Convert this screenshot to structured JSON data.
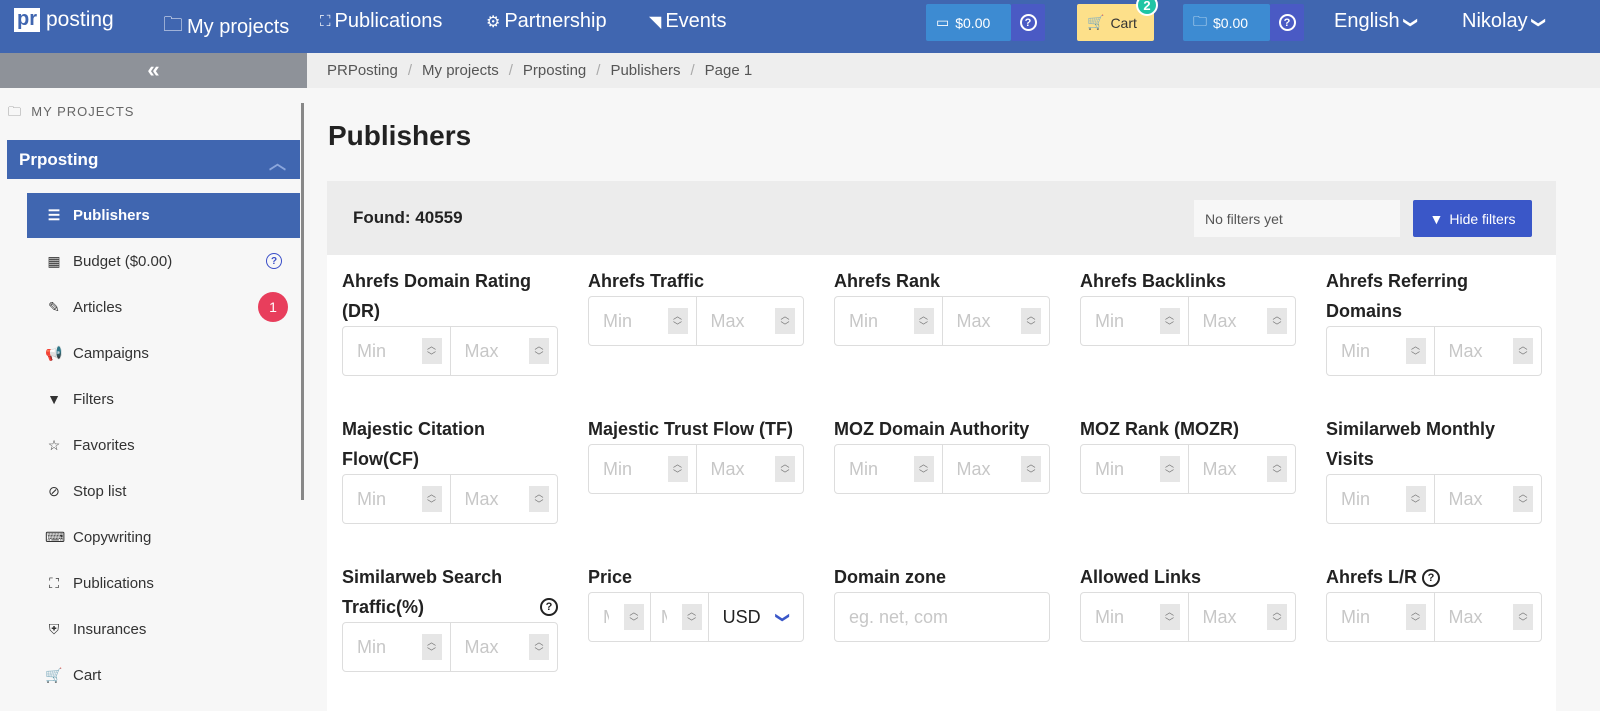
{
  "header": {
    "logo_pr": "pr",
    "logo_text": "posting",
    "nav": [
      {
        "label": "My projects",
        "icon": "folder-icon"
      },
      {
        "label": "Publications",
        "icon": "sitemap-icon"
      },
      {
        "label": "Partnership",
        "icon": "handshake-icon"
      },
      {
        "label": "Events",
        "icon": "rss-icon"
      }
    ],
    "balance1": "$0.00",
    "cart_label": "Cart",
    "cart_count": "2",
    "balance2": "$0.00",
    "language": "English",
    "user": "Nikolay"
  },
  "sidebar": {
    "section": "MY PROJECTS",
    "project": "Prposting",
    "items": [
      {
        "label": "Publishers",
        "icon": "list-icon"
      },
      {
        "label": "Budget ($0.00)",
        "icon": "calculator-icon"
      },
      {
        "label": "Articles",
        "icon": "pencil-icon",
        "badge": "1"
      },
      {
        "label": "Campaigns",
        "icon": "megaphone-icon"
      },
      {
        "label": "Filters",
        "icon": "filter-icon"
      },
      {
        "label": "Favorites",
        "icon": "star-icon"
      },
      {
        "label": "Stop list",
        "icon": "ban-icon"
      },
      {
        "label": "Copywriting",
        "icon": "keyboard-icon"
      },
      {
        "label": "Publications",
        "icon": "sitemap-icon"
      },
      {
        "label": "Insurances",
        "icon": "shield-icon"
      },
      {
        "label": "Cart",
        "icon": "cart-icon"
      }
    ]
  },
  "breadcrumb": [
    "PRPosting",
    "My projects",
    "Prposting",
    "Publishers",
    "Page 1"
  ],
  "page_title": "Publishers",
  "panel": {
    "found": "Found: 40559",
    "filters_placeholder": "No filters yet",
    "hide_filters": "Hide filters"
  },
  "filters": [
    {
      "label": "Ahrefs Domain Rating (DR)",
      "type": "range"
    },
    {
      "label": "Ahrefs Traffic",
      "type": "range"
    },
    {
      "label": "Ahrefs Rank",
      "type": "range"
    },
    {
      "label": "Ahrefs Backlinks",
      "type": "range"
    },
    {
      "label": "Ahrefs Referring Domains",
      "type": "range"
    },
    {
      "label": "Majestic Citation Flow(CF)",
      "type": "range"
    },
    {
      "label": "Majestic Trust Flow (TF)",
      "type": "range"
    },
    {
      "label": "MOZ Domain Authority",
      "type": "range"
    },
    {
      "label": "MOZ Rank (MOZR)",
      "type": "range"
    },
    {
      "label": "Similarweb Monthly Visits",
      "type": "range"
    },
    {
      "label": "Similarweb Search Traffic(%)",
      "type": "range",
      "help": true
    },
    {
      "label": "Price",
      "type": "price",
      "currency": "USD"
    },
    {
      "label": "Domain zone",
      "type": "text",
      "placeholder": "eg. net, com"
    },
    {
      "label": "Allowed Links",
      "type": "range"
    },
    {
      "label": "Ahrefs L/R",
      "type": "range",
      "help": true
    }
  ],
  "min_placeholder": "Min",
  "max_placeholder": "Max",
  "price_min_placeholder": "M",
  "price_max_placeholder": "M"
}
